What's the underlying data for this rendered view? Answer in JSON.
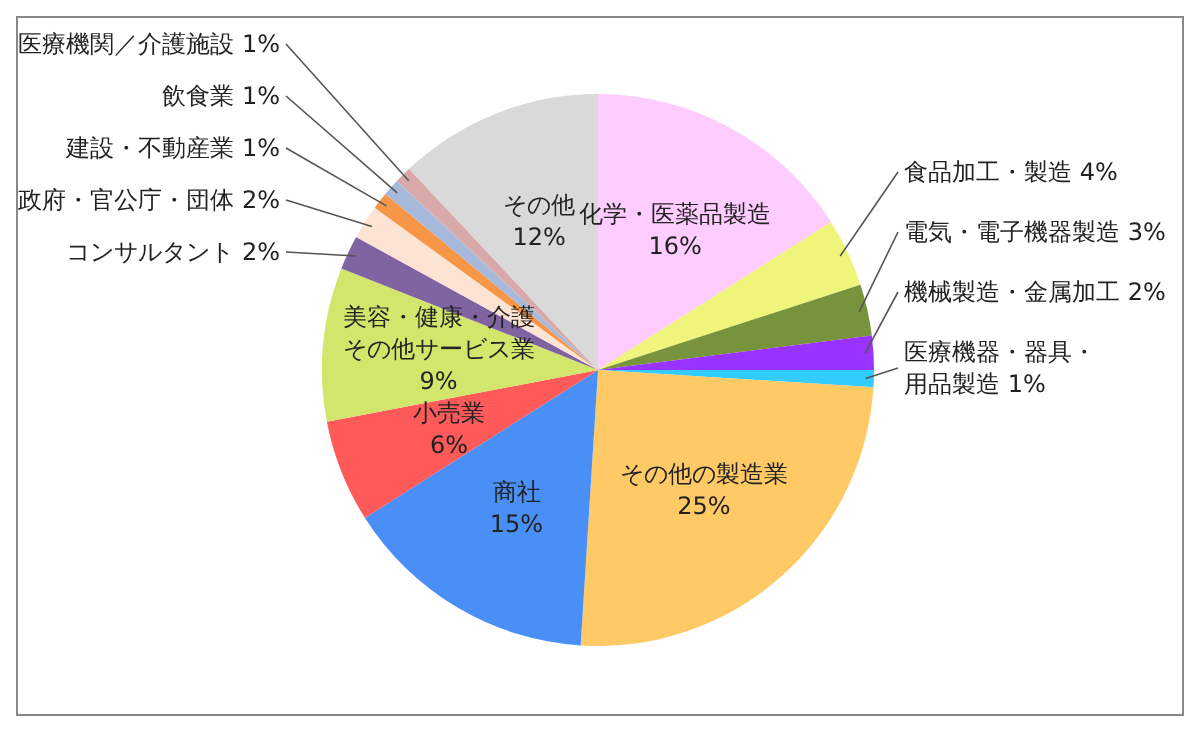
{
  "chart_data": {
    "type": "pie",
    "categories": [
      "化学・医薬品製造",
      "食品加工・製造",
      "電気・電子機器製造",
      "機械製造・金属加工",
      "医療機器・器具・用品製造",
      "その他の製造業",
      "商社",
      "小売業",
      "美容・健康・介護その他サービス業",
      "コンサルタント",
      "政府・官公庁・団体",
      "建設・不動産業",
      "飲食業",
      "医療機関／介護施設",
      "その他"
    ],
    "values": [
      16,
      4,
      3,
      2,
      1,
      25,
      15,
      6,
      9,
      2,
      2,
      1,
      1,
      1,
      12
    ],
    "value_labels": [
      "16%",
      "4%",
      "3%",
      "2%",
      "1%",
      "25%",
      "15%",
      "6%",
      "9%",
      "2%",
      "2%",
      "1%",
      "1%",
      "1%",
      "12%"
    ],
    "colors": [
      "#ffccff",
      "#eef57a",
      "#77933c",
      "#9933ff",
      "#33ccff",
      "#ffc966",
      "#4a8ff5",
      "#ff5a5a",
      "#d2e66c",
      "#8064a2",
      "#fde3d3",
      "#f79646",
      "#a6b9db",
      "#d9a9a9",
      "#d9d9d9"
    ]
  }
}
